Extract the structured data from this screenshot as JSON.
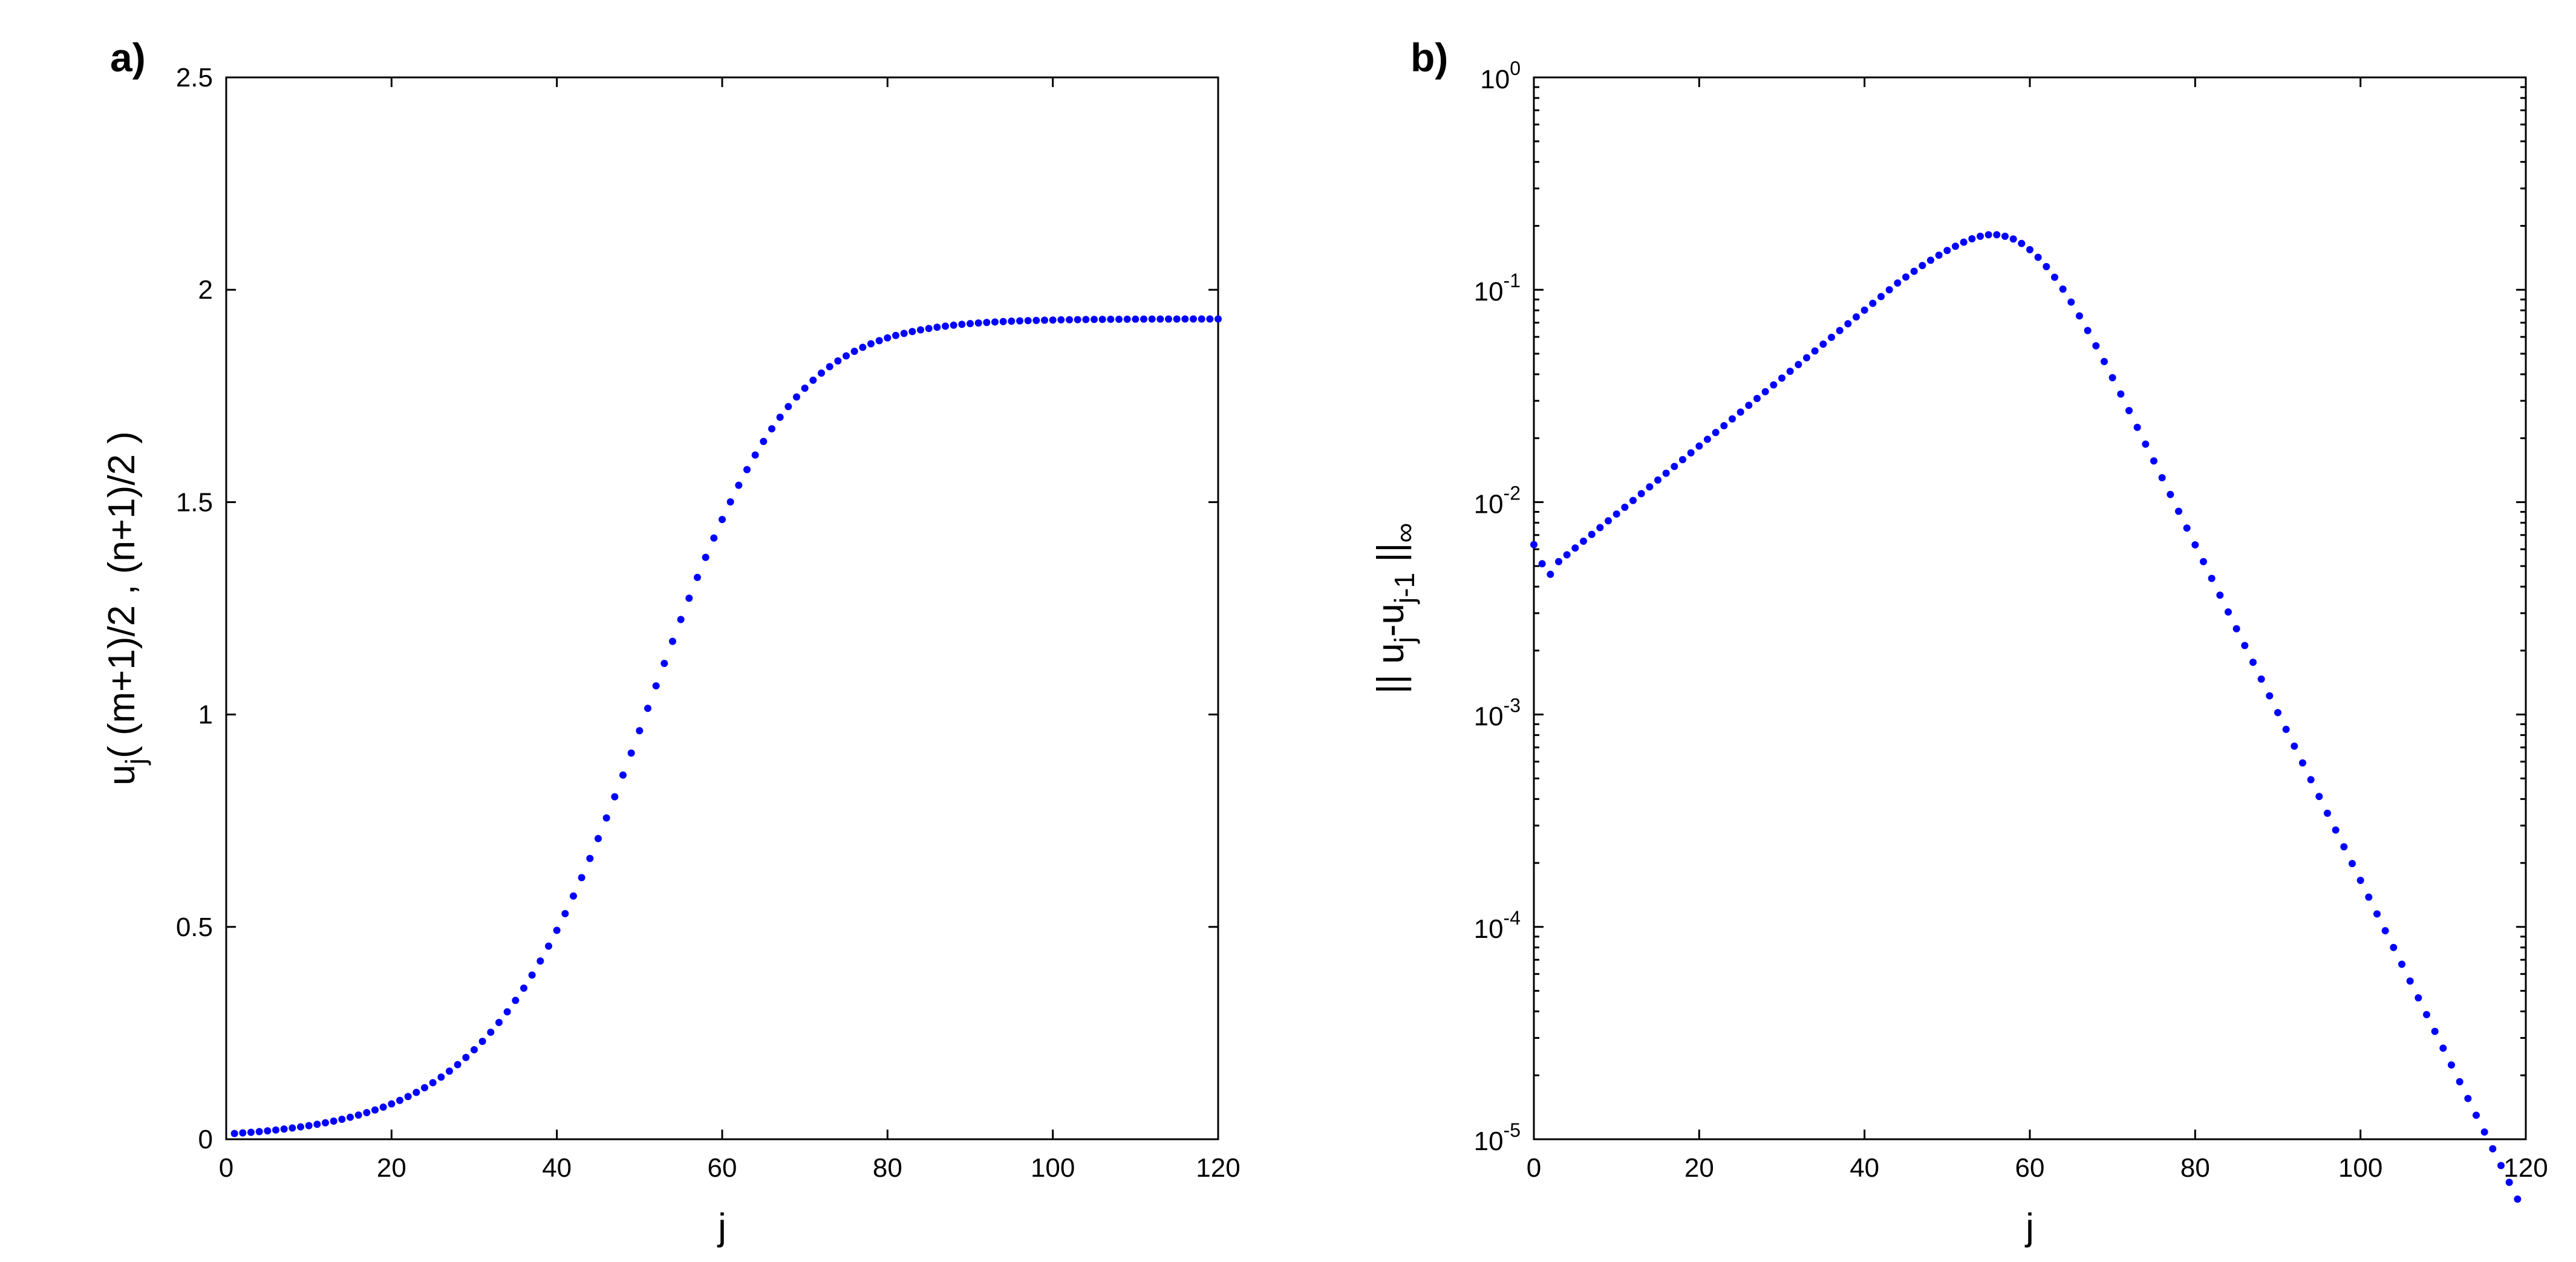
{
  "chart_data": [
    {
      "type": "scatter",
      "panel_label": "a)",
      "title": "",
      "xlabel": "j",
      "ylabel": "u_j( (m+1)/2 , (n+1)/2 )",
      "ylabel_parts": {
        "u": "u",
        "sub": "j",
        "rest": "( (m+1)/2 , (n+1)/2 )"
      },
      "xlim": [
        0,
        120
      ],
      "ylim": [
        0,
        2.5
      ],
      "yscale": "linear",
      "xticks": [
        0,
        20,
        40,
        60,
        80,
        100,
        120
      ],
      "xtick_labels": [
        "0",
        "20",
        "40",
        "60",
        "80",
        "100",
        "120"
      ],
      "yticks": [
        0,
        0.5,
        1,
        1.5,
        2,
        2.5
      ],
      "ytick_labels": [
        "0",
        "0.5",
        "1",
        "1.5",
        "2",
        "2.5"
      ],
      "grid": false,
      "marker_color": "#0000ff",
      "series": [
        {
          "name": "u_j",
          "x_start": 1,
          "x_end": 120,
          "values": [
            0.0135,
            0.0149,
            0.0164,
            0.018,
            0.0198,
            0.0218,
            0.024,
            0.0265,
            0.0291,
            0.0321,
            0.0353,
            0.0388,
            0.0427,
            0.047,
            0.0517,
            0.0569,
            0.0626,
            0.0688,
            0.0757,
            0.0832,
            0.0915,
            0.1005,
            0.1104,
            0.1213,
            0.1332,
            0.1462,
            0.1603,
            0.1757,
            0.1925,
            0.2107,
            0.2305,
            0.2519,
            0.275,
            0.3,
            0.3269,
            0.3557,
            0.3866,
            0.4196,
            0.4547,
            0.4919,
            0.5312,
            0.5726,
            0.6159,
            0.6611,
            0.708,
            0.7565,
            0.8064,
            0.8574,
            0.9092,
            0.9618,
            1.0146,
            1.0675,
            1.1202,
            1.1723,
            1.2236,
            1.2738,
            1.3227,
            1.37,
            1.4155,
            1.4591,
            1.5005,
            1.5397,
            1.5765,
            1.6109,
            1.643,
            1.6726,
            1.6999,
            1.7249,
            1.7476,
            1.7683,
            1.787,
            1.8038,
            1.8189,
            1.8324,
            1.8444,
            1.855,
            1.8645,
            1.8728,
            1.8802,
            1.8867,
            1.8924,
            1.8973,
            1.9017,
            1.9056,
            1.9089,
            1.9119,
            1.9144,
            1.9167,
            1.9186,
            1.9203,
            1.9218,
            1.9231,
            1.9242,
            1.9252,
            1.926,
            1.9267,
            1.9274,
            1.9279,
            1.9284,
            1.9288,
            1.9292,
            1.9295,
            1.9297,
            1.93,
            1.9302,
            1.9303,
            1.9305,
            1.9306,
            1.9307,
            1.9308,
            1.9309,
            1.931,
            1.931,
            1.9311,
            1.9311,
            1.9312,
            1.9312,
            1.9312,
            1.9313,
            1.9313
          ]
        }
      ]
    },
    {
      "type": "scatter",
      "panel_label": "b)",
      "title": "",
      "xlabel": "j",
      "ylabel": "|| u_j-u_j-1 ||_∞",
      "ylabel_parts": {
        "bars": "|| u",
        "sub1": "j",
        "mid": "-u",
        "sub2": "j-1",
        "bars2": " ||",
        "sub3": "∞"
      },
      "xlim": [
        0,
        120
      ],
      "ylim": [
        1e-05,
        1
      ],
      "yscale": "log",
      "xticks": [
        0,
        20,
        40,
        60,
        80,
        100,
        120
      ],
      "xtick_labels": [
        "0",
        "20",
        "40",
        "60",
        "80",
        "100",
        "120"
      ],
      "yticks": [
        1e-05,
        0.0001,
        0.001,
        0.01,
        0.1,
        1
      ],
      "ytick_labels": [
        {
          "base": "10",
          "exp": "-5"
        },
        {
          "base": "10",
          "exp": "-4"
        },
        {
          "base": "10",
          "exp": "-3"
        },
        {
          "base": "10",
          "exp": "-2"
        },
        {
          "base": "10",
          "exp": "-1"
        },
        {
          "base": "10",
          "exp": "0"
        }
      ],
      "grid": false,
      "marker_color": "#0000ff",
      "series": [
        {
          "name": "||u_j - u_j-1||_inf",
          "points_note": "log10 values of the norm at x = 0..119",
          "x_start": 0,
          "log10_values": [
            -2.2,
            -2.29,
            -2.34,
            -2.28,
            -2.248,
            -2.216,
            -2.184,
            -2.152,
            -2.12,
            -2.088,
            -2.056,
            -2.024,
            -1.992,
            -1.96,
            -1.928,
            -1.896,
            -1.864,
            -1.832,
            -1.8,
            -1.768,
            -1.736,
            -1.704,
            -1.672,
            -1.64,
            -1.608,
            -1.576,
            -1.544,
            -1.512,
            -1.48,
            -1.448,
            -1.416,
            -1.384,
            -1.352,
            -1.32,
            -1.288,
            -1.256,
            -1.224,
            -1.192,
            -1.16,
            -1.128,
            -1.096,
            -1.064,
            -1.032,
            -1.0,
            -0.968,
            -0.94,
            -0.913,
            -0.886,
            -0.861,
            -0.837,
            -0.815,
            -0.795,
            -0.776,
            -0.76,
            -0.748,
            -0.741,
            -0.741,
            -0.748,
            -0.761,
            -0.782,
            -0.811,
            -0.847,
            -0.891,
            -0.941,
            -0.997,
            -1.058,
            -1.123,
            -1.192,
            -1.264,
            -1.338,
            -1.414,
            -1.491,
            -1.569,
            -1.648,
            -1.727,
            -1.806,
            -1.885,
            -1.964,
            -2.043,
            -2.122,
            -2.201,
            -2.28,
            -2.359,
            -2.438,
            -2.517,
            -2.596,
            -2.675,
            -2.754,
            -2.833,
            -2.912,
            -2.991,
            -3.07,
            -3.149,
            -3.228,
            -3.307,
            -3.386,
            -3.465,
            -3.544,
            -3.623,
            -3.702,
            -3.781,
            -3.86,
            -3.939,
            -4.018,
            -4.097,
            -4.176,
            -4.255,
            -4.334,
            -4.413,
            -4.492,
            -4.571,
            -4.65,
            -4.729,
            -4.808,
            -4.887,
            -4.966,
            -5.045,
            -5.124,
            -5.203,
            -5.282
          ]
        }
      ]
    }
  ]
}
